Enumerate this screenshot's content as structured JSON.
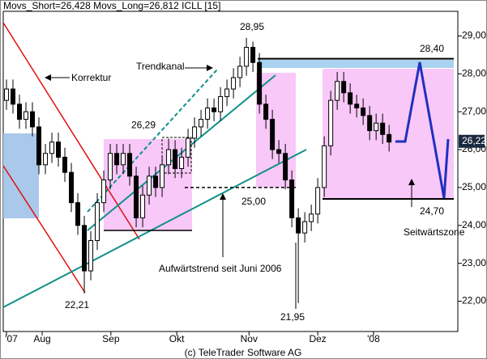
{
  "chart_data": {
    "type": "candlestick",
    "title": "Movs_Short=26,428 Movs_Long=26,812 ICLL [15]",
    "footer": "(c) TeleTrader Software AG",
    "x": [
      0,
      1,
      2,
      3,
      4,
      5,
      6,
      7,
      8,
      9,
      10,
      11,
      12,
      13,
      14,
      15,
      16,
      17,
      18,
      19,
      20,
      21,
      22,
      23,
      24,
      25,
      26,
      27,
      28,
      29,
      30,
      31,
      32,
      33,
      34,
      35,
      36,
      37,
      38,
      39,
      40,
      41,
      42,
      43,
      44,
      45,
      46,
      47,
      48,
      49,
      50,
      51,
      52,
      53,
      54,
      55,
      56,
      57,
      58,
      59
    ],
    "open": [
      27.3,
      27.6,
      27.2,
      26.8,
      27.0,
      26.6,
      25.6,
      25.9,
      26.2,
      25.8,
      25.4,
      24.6,
      24.0,
      22.8,
      23.6,
      24.6,
      25.2,
      25.9,
      25.6,
      25.9,
      25.3,
      24.2,
      24.8,
      25.3,
      25.0,
      25.6,
      26.0,
      25.5,
      25.8,
      26.3,
      26.6,
      26.8,
      27.1,
      27.0,
      27.4,
      27.6,
      27.9,
      28.2,
      28.7,
      28.3,
      27.2,
      26.8,
      26.0,
      25.9,
      25.2,
      24.2,
      23.8,
      24.1,
      24.3,
      25.0,
      26.1,
      27.3,
      27.8,
      27.5,
      27.2,
      27.1,
      26.9,
      26.5,
      26.7,
      26.4
    ],
    "high": [
      27.85,
      27.85,
      27.45,
      27.25,
      27.25,
      26.85,
      26.15,
      26.45,
      26.45,
      26.05,
      25.65,
      24.85,
      24.25,
      23.85,
      24.85,
      25.45,
      26.15,
      26.15,
      26.15,
      26.15,
      25.55,
      25.05,
      25.55,
      25.55,
      25.85,
      26.29,
      26.25,
      26.05,
      26.55,
      26.85,
      27.05,
      27.35,
      27.35,
      27.65,
      27.85,
      28.15,
      28.45,
      28.95,
      28.85,
      28.55,
      27.45,
      27.05,
      26.25,
      26.15,
      25.45,
      24.45,
      24.35,
      24.55,
      25.25,
      26.35,
      27.55,
      28.05,
      28.05,
      27.75,
      27.45,
      27.35,
      27.15,
      26.95,
      26.95,
      26.65
    ],
    "low": [
      27.05,
      26.95,
      26.55,
      26.55,
      26.35,
      25.35,
      25.35,
      25.65,
      25.55,
      25.15,
      24.35,
      23.75,
      22.21,
      22.55,
      23.35,
      24.35,
      24.95,
      25.35,
      25.35,
      25.05,
      23.95,
      23.95,
      24.55,
      24.75,
      24.75,
      25.35,
      25.25,
      25.25,
      25.55,
      26.05,
      26.35,
      26.55,
      26.75,
      26.75,
      27.15,
      27.35,
      27.65,
      27.95,
      28.05,
      26.95,
      26.55,
      25.75,
      25.65,
      24.95,
      23.95,
      21.95,
      23.55,
      23.85,
      24.05,
      24.75,
      25.85,
      27.05,
      27.25,
      26.95,
      26.85,
      26.65,
      26.25,
      26.25,
      26.15,
      25.95
    ],
    "close": [
      27.6,
      27.2,
      26.8,
      27.0,
      26.6,
      25.6,
      25.9,
      26.2,
      25.8,
      25.4,
      24.6,
      24.0,
      22.8,
      23.6,
      24.6,
      25.2,
      25.9,
      25.6,
      25.9,
      25.3,
      24.2,
      24.8,
      25.3,
      25.0,
      25.6,
      26.0,
      25.5,
      25.8,
      26.3,
      26.6,
      26.8,
      27.1,
      27.0,
      27.4,
      27.6,
      27.9,
      28.2,
      28.7,
      28.3,
      27.2,
      26.8,
      26.0,
      25.9,
      25.2,
      24.2,
      23.8,
      24.1,
      24.3,
      25.0,
      26.1,
      27.3,
      27.8,
      27.5,
      27.2,
      27.1,
      26.9,
      26.5,
      26.7,
      26.4,
      26.2
    ],
    "xlim": [
      -0.5,
      69.6
    ],
    "xticks": [
      {
        "value": 0,
        "label": "'07"
      },
      {
        "value": 5.5,
        "label": "Aug"
      },
      {
        "value": 16.1,
        "label": "Sep"
      },
      {
        "value": 26.25,
        "label": "Okt"
      },
      {
        "value": 37.4,
        "label": "Nov"
      },
      {
        "value": 48,
        "label": "Dez"
      },
      {
        "value": 56.6,
        "label": "'08"
      }
    ],
    "ylim": [
      21.2,
      29.65
    ],
    "yticks": [
      {
        "value": 22,
        "label": "22,00"
      },
      {
        "value": 23,
        "label": "23,00"
      },
      {
        "value": 24,
        "label": "24,00"
      },
      {
        "value": 25,
        "label": "25,00"
      },
      {
        "value": 26,
        "label": "26,00"
      },
      {
        "value": 27,
        "label": "27,00"
      },
      {
        "value": 28,
        "label": "28,00"
      },
      {
        "value": 29,
        "label": "29,00"
      }
    ],
    "last_price": {
      "value": 26.22,
      "label": "26,22"
    },
    "levels": [
      {
        "value": 28.95,
        "label": "28,95"
      },
      {
        "value": 26.29,
        "label": "26,29"
      },
      {
        "value": 25.0,
        "label": "25,00"
      },
      {
        "value": 22.21,
        "label": "22,21"
      },
      {
        "value": 21.95,
        "label": "21,95"
      },
      {
        "value": 28.4,
        "label": "28,40"
      },
      {
        "value": 24.7,
        "label": "24,70"
      }
    ],
    "annotations": [
      "Korrektur",
      "Trendkanal",
      "Aufwärtstrend seit Juni 2006",
      "Seitwärtszone"
    ],
    "up_color": "#ffffff",
    "down_color": "#000000",
    "grid": false
  }
}
